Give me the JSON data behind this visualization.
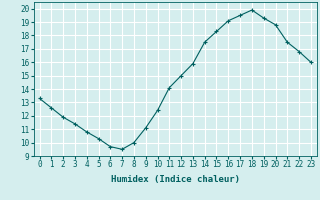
{
  "x": [
    0,
    1,
    2,
    3,
    4,
    5,
    6,
    7,
    8,
    9,
    10,
    11,
    12,
    13,
    14,
    15,
    16,
    17,
    18,
    19,
    20,
    21,
    22,
    23
  ],
  "y": [
    13.3,
    12.6,
    11.9,
    11.4,
    10.8,
    10.3,
    9.7,
    9.5,
    10.0,
    11.1,
    12.4,
    14.1,
    15.0,
    15.9,
    17.5,
    18.3,
    19.1,
    19.5,
    19.9,
    19.3,
    18.8,
    17.5,
    16.8,
    16.0
  ],
  "line_color": "#006060",
  "marker": "+",
  "marker_size": 3,
  "xlabel": "Humidex (Indice chaleur)",
  "ylabel": "",
  "xlim": [
    -0.5,
    23.5
  ],
  "ylim": [
    9,
    20.5
  ],
  "yticks": [
    9,
    10,
    11,
    12,
    13,
    14,
    15,
    16,
    17,
    18,
    19,
    20
  ],
  "xticks": [
    0,
    1,
    2,
    3,
    4,
    5,
    6,
    7,
    8,
    9,
    10,
    11,
    12,
    13,
    14,
    15,
    16,
    17,
    18,
    19,
    20,
    21,
    22,
    23
  ],
  "bg_color": "#d5eeee",
  "grid_color": "#ffffff",
  "label_fontsize": 6.5,
  "tick_fontsize": 5.5
}
